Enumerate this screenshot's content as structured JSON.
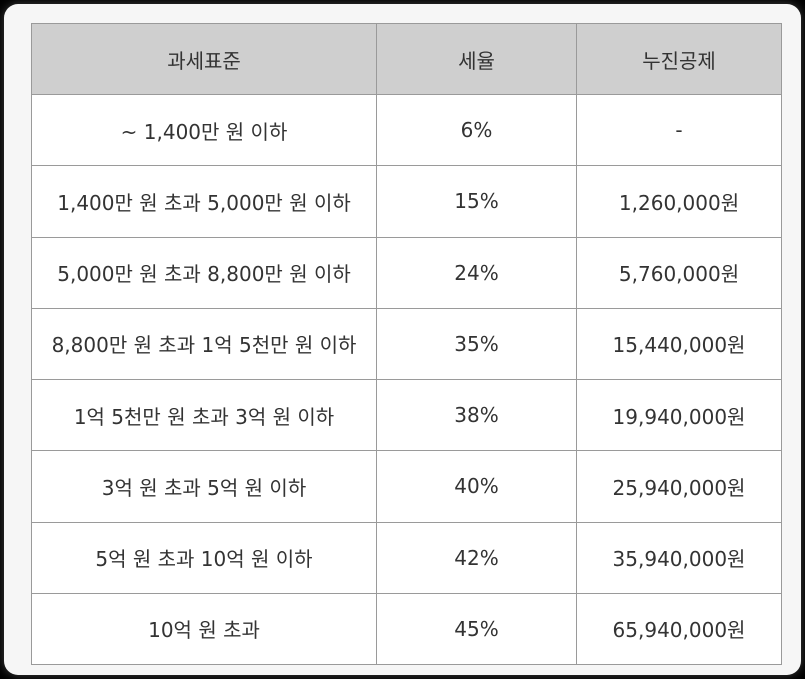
{
  "table": {
    "headers": [
      "과세표준",
      "세율",
      "누진공제"
    ],
    "rows": [
      [
        "~ 1,400만 원 이하",
        "6%",
        "-"
      ],
      [
        "1,400만 원 초과 5,000만 원 이하",
        "15%",
        "1,260,000원"
      ],
      [
        "5,000만 원 초과 8,800만 원 이하",
        "24%",
        "5,760,000원"
      ],
      [
        "8,800만 원 초과 1억 5천만 원 이하",
        "35%",
        "15,440,000원"
      ],
      [
        "1억 5천만 원 초과 3억 원 이하",
        "38%",
        "19,940,000원"
      ],
      [
        "3억 원 초과 5억 원 이하",
        "40%",
        "25,940,000원"
      ],
      [
        "5억 원 초과 10억 원 이하",
        "42%",
        "35,940,000원"
      ],
      [
        "10억 원 초과",
        "45%",
        "65,940,000원"
      ]
    ]
  },
  "colors": {
    "header_bg": "#cfcfcf",
    "border": "#9a9a9a",
    "text": "#333333"
  }
}
